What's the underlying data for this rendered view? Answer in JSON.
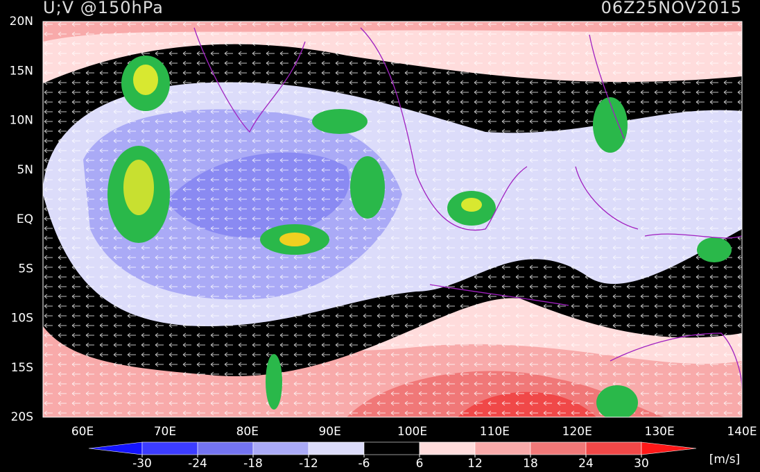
{
  "header": {
    "title": "U;V @150hPa",
    "valid_time": "06Z25NOV2015"
  },
  "map": {
    "lat_labels": [
      "20N",
      "15N",
      "10N",
      "5N",
      "EQ",
      "5S",
      "10S",
      "15S",
      "20S"
    ],
    "lon_labels": [
      "60E",
      "70E",
      "80E",
      "90E",
      "100E",
      "110E",
      "120E",
      "130E",
      "140E"
    ]
  },
  "colorbar": {
    "ticks": [
      -30,
      -24,
      -18,
      -12,
      -6,
      6,
      12,
      18,
      24,
      30
    ],
    "colors": [
      "#1414ff",
      "#3c3cff",
      "#7474f0",
      "#aaaaf6",
      "#dcdcfa",
      "#000000",
      "#ffdcdc",
      "#f8aaaa",
      "#f07878",
      "#f04848",
      "#ff1818"
    ],
    "unit": "[m/s]"
  }
}
